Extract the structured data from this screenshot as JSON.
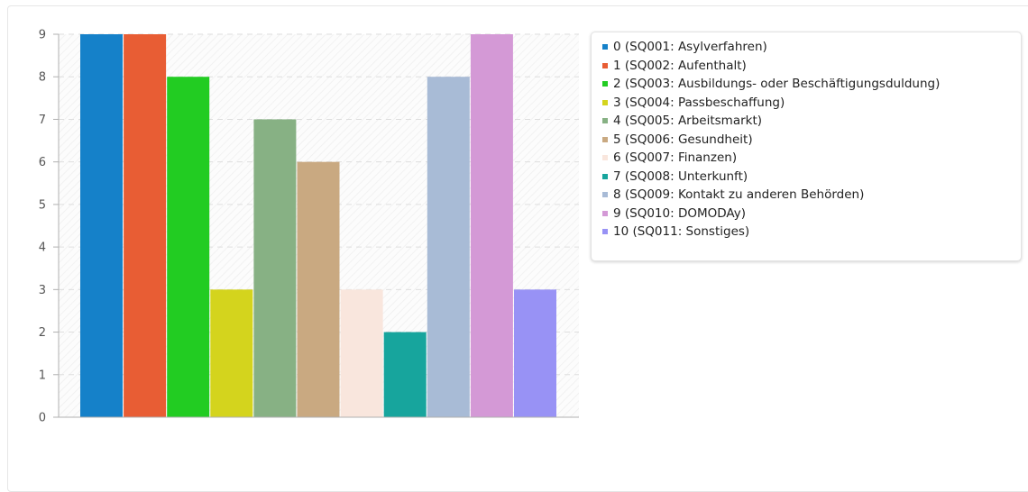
{
  "chart_data": {
    "type": "bar",
    "categories": [
      "0 (SQ001: Asylverfahren)",
      "1 (SQ002: Aufenthalt)",
      "2 (SQ003: Ausbildungs- oder Beschäftigungsduldung)",
      "3 (SQ004: Passbeschaffung)",
      "4 (SQ005: Arbeitsmarkt)",
      "5 (SQ006: Gesundheit)",
      "6 (SQ007: Finanzen)",
      "7 (SQ008: Unterkunft)",
      "8 (SQ009: Kontakt zu anderen Behörden)",
      "9 (SQ010: DOMODAy)",
      "10 (SQ011: Sonstiges)"
    ],
    "values": [
      9,
      9,
      8,
      3,
      7,
      6,
      3,
      2,
      8,
      9,
      3
    ],
    "colors": [
      "#1581c9",
      "#e85d34",
      "#22cc22",
      "#d4d41d",
      "#87b184",
      "#c9a981",
      "#f9e6dd",
      "#17a59d",
      "#a8bbd6",
      "#d499d6",
      "#9892f5"
    ],
    "ylim": [
      0,
      9
    ],
    "yticks": [
      "0",
      "1",
      "2",
      "3",
      "4",
      "5",
      "6",
      "7",
      "8",
      "9"
    ],
    "grid": true,
    "legend_position": "right",
    "title": "",
    "xlabel": "",
    "ylabel": ""
  }
}
